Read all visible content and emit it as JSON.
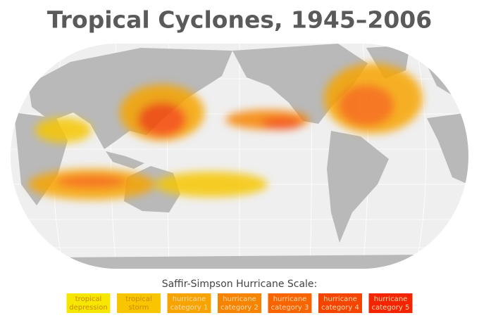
{
  "title": "Tropical Cyclones, 1945–2006",
  "legend": {
    "title": "Saffir-Simpson Hurricane Scale:",
    "items": [
      {
        "lines": [
          "tropical",
          "depression"
        ],
        "color": "#f7e600"
      },
      {
        "lines": [
          "tropical",
          "storm"
        ],
        "color": "#f7c600"
      },
      {
        "lines": [
          "hurricane",
          "category 1"
        ],
        "color": "#f7a400"
      },
      {
        "lines": [
          "hurricane",
          "category 2"
        ],
        "color": "#f78400"
      },
      {
        "lines": [
          "hurricane",
          "category 3"
        ],
        "color": "#f76400"
      },
      {
        "lines": [
          "hurricane",
          "category 4"
        ],
        "color": "#f54400"
      },
      {
        "lines": [
          "hurricane",
          "category 5"
        ],
        "color": "#f52400"
      }
    ]
  }
}
